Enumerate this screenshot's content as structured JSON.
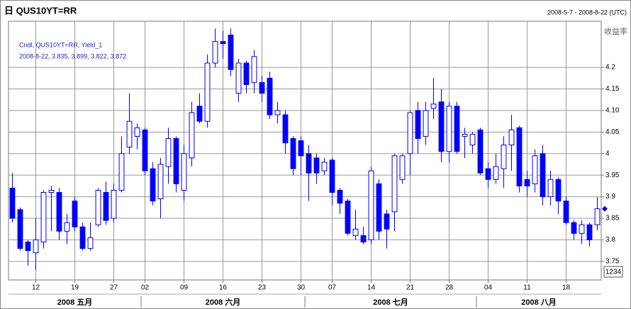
{
  "chart_data": {
    "type": "candlestick",
    "title": "日 QUS10YT=RR",
    "subtitle": "2008-5-7 - 2008-8-22 (UTC)",
    "y_axis_label": "收益率",
    "last_values_label": "2008-8-22, 3.835, 3.899, 3.822, 3.872",
    "corner_box": "1234",
    "x": [
      "2008-05-07",
      "2008-05-08",
      "2008-05-09",
      "2008-05-12",
      "2008-05-13",
      "2008-05-14",
      "2008-05-15",
      "2008-05-16",
      "2008-05-19",
      "2008-05-20",
      "2008-05-21",
      "2008-05-22",
      "2008-05-23",
      "2008-05-27",
      "2008-05-28",
      "2008-05-29",
      "2008-05-30",
      "2008-06-02",
      "2008-06-03",
      "2008-06-04",
      "2008-06-05",
      "2008-06-06",
      "2008-06-09",
      "2008-06-10",
      "2008-06-11",
      "2008-06-12",
      "2008-06-13",
      "2008-06-16",
      "2008-06-17",
      "2008-06-18",
      "2008-06-19",
      "2008-06-20",
      "2008-06-23",
      "2008-06-24",
      "2008-06-25",
      "2008-06-26",
      "2008-06-27",
      "2008-06-30",
      "2008-07-01",
      "2008-07-02",
      "2008-07-03",
      "2008-07-07",
      "2008-07-08",
      "2008-07-09",
      "2008-07-10",
      "2008-07-11",
      "2008-07-14",
      "2008-07-15",
      "2008-07-16",
      "2008-07-17",
      "2008-07-18",
      "2008-07-21",
      "2008-07-22",
      "2008-07-23",
      "2008-07-24",
      "2008-07-25",
      "2008-07-28",
      "2008-07-29",
      "2008-07-30",
      "2008-07-31",
      "2008-08-01",
      "2008-08-04",
      "2008-08-05",
      "2008-08-06",
      "2008-08-07",
      "2008-08-08",
      "2008-08-11",
      "2008-08-12",
      "2008-08-13",
      "2008-08-14",
      "2008-08-15",
      "2008-08-18",
      "2008-08-19",
      "2008-08-20",
      "2008-08-21",
      "2008-08-22"
    ],
    "xticks": [
      {
        "value": "2008-05-12",
        "label": "12"
      },
      {
        "value": "2008-05-19",
        "label": "19"
      },
      {
        "value": "2008-05-27",
        "label": "27"
      },
      {
        "value": "2008-06-02",
        "label": "02"
      },
      {
        "value": "2008-06-09",
        "label": "09"
      },
      {
        "value": "2008-06-16",
        "label": "16"
      },
      {
        "value": "2008-06-23",
        "label": "23"
      },
      {
        "value": "2008-06-30",
        "label": "30"
      },
      {
        "value": "2008-07-07",
        "label": "07"
      },
      {
        "value": "2008-07-14",
        "label": "14"
      },
      {
        "value": "2008-07-21",
        "label": "21"
      },
      {
        "value": "2008-07-28",
        "label": "28"
      },
      {
        "value": "2008-08-04",
        "label": "04"
      },
      {
        "value": "2008-08-11",
        "label": "11"
      },
      {
        "value": "2008-08-18",
        "label": "18"
      }
    ],
    "month_labels": [
      {
        "value": "2008-05",
        "label": "2008 五月"
      },
      {
        "value": "2008-06",
        "label": "2008 六月"
      },
      {
        "value": "2008-07",
        "label": "2008 七月"
      },
      {
        "value": "2008-08",
        "label": "2008 八月"
      }
    ],
    "ylim": [
      3.707,
      4.307
    ],
    "yticks": [
      3.75,
      3.8,
      3.85,
      3.9,
      3.95,
      4,
      4.05,
      {
        "value": 4.1,
        "label": "4.10"
      },
      4.15,
      4.2
    ],
    "grid": true,
    "series": [
      {
        "name": "Cndl, QUS10YT=RR, Yield_1",
        "color": "#0000ff",
        "open": [
          3.92,
          3.87,
          3.795,
          3.77,
          3.795,
          3.91,
          3.91,
          3.82,
          3.89,
          3.83,
          3.78,
          3.835,
          3.91,
          3.85,
          3.915,
          4.015,
          4.04,
          4.055,
          3.965,
          3.895,
          3.97,
          4.035,
          3.915,
          3.99,
          4.11,
          4.075,
          4.21,
          4.26,
          4.275,
          4.14,
          4.21,
          4.165,
          4.165,
          4.175,
          4.09,
          4.09,
          4.035,
          4.03,
          4.0,
          3.99,
          3.96,
          3.985,
          3.915,
          3.89,
          3.81,
          3.81,
          3.8,
          3.93,
          3.86,
          3.865,
          3.94,
          4.0,
          4.1,
          4.04,
          4.105,
          4.12,
          4.005,
          4.11,
          4.04,
          4.02,
          4.055,
          3.965,
          3.94,
          3.965,
          4.02,
          4.06,
          3.94,
          3.93,
          4.0,
          3.9,
          3.94,
          3.89,
          3.84,
          3.815,
          3.835,
          3.835
        ],
        "high": [
          3.955,
          3.875,
          3.8,
          3.85,
          3.915,
          3.925,
          3.92,
          3.86,
          3.9,
          3.84,
          3.84,
          3.92,
          3.935,
          3.93,
          4.04,
          4.14,
          4.07,
          4.06,
          3.98,
          3.99,
          4.06,
          4.04,
          4.02,
          4.12,
          4.14,
          4.23,
          4.29,
          4.285,
          4.29,
          4.22,
          4.215,
          4.24,
          4.18,
          4.19,
          4.12,
          4.1,
          4.04,
          4.04,
          4.02,
          4.0,
          3.99,
          3.99,
          3.92,
          3.895,
          3.87,
          3.83,
          3.97,
          3.94,
          3.87,
          4.0,
          4.0,
          4.1,
          4.12,
          4.12,
          4.175,
          4.15,
          4.12,
          4.12,
          4.06,
          4.05,
          4.06,
          3.98,
          4.0,
          4.04,
          4.09,
          4.065,
          3.96,
          4.01,
          4.02,
          3.96,
          3.945,
          3.9,
          3.845,
          3.845,
          3.84,
          3.899
        ],
        "low": [
          3.84,
          3.775,
          3.74,
          3.73,
          3.78,
          3.82,
          3.8,
          3.79,
          3.82,
          3.775,
          3.775,
          3.83,
          3.835,
          3.84,
          3.91,
          4.0,
          4.01,
          3.95,
          3.88,
          3.85,
          3.93,
          3.91,
          3.89,
          3.97,
          4.07,
          4.06,
          4.2,
          4.22,
          4.18,
          4.12,
          4.14,
          4.14,
          4.12,
          4.08,
          4.07,
          4.0,
          3.95,
          3.95,
          3.89,
          3.93,
          3.95,
          3.88,
          3.86,
          3.81,
          3.8,
          3.79,
          3.79,
          3.8,
          3.78,
          3.82,
          3.93,
          3.95,
          4.0,
          4.02,
          4.08,
          3.98,
          3.98,
          4.0,
          3.99,
          4.0,
          3.95,
          3.92,
          3.93,
          3.92,
          3.96,
          3.91,
          3.9,
          3.91,
          3.88,
          3.88,
          3.86,
          3.835,
          3.8,
          3.79,
          3.785,
          3.822
        ],
        "close": [
          3.85,
          3.78,
          3.775,
          3.8,
          3.91,
          3.915,
          3.82,
          3.84,
          3.83,
          3.78,
          3.805,
          3.915,
          3.845,
          3.915,
          4.0,
          4.075,
          4.06,
          3.96,
          3.89,
          3.975,
          4.035,
          3.93,
          4.0,
          4.095,
          4.075,
          4.21,
          4.26,
          4.255,
          4.195,
          4.21,
          4.16,
          4.225,
          4.14,
          4.09,
          4.1,
          4.025,
          3.965,
          3.995,
          3.955,
          3.955,
          3.98,
          3.91,
          3.885,
          3.815,
          3.825,
          3.795,
          3.96,
          3.82,
          3.825,
          3.995,
          3.995,
          4.095,
          4.035,
          4.1,
          4.115,
          4.005,
          4.11,
          4.005,
          4.045,
          4.045,
          3.955,
          3.94,
          3.97,
          4.02,
          4.055,
          3.925,
          3.925,
          3.995,
          3.9,
          3.94,
          3.89,
          3.84,
          3.815,
          3.835,
          3.8,
          3.872
        ]
      }
    ]
  }
}
